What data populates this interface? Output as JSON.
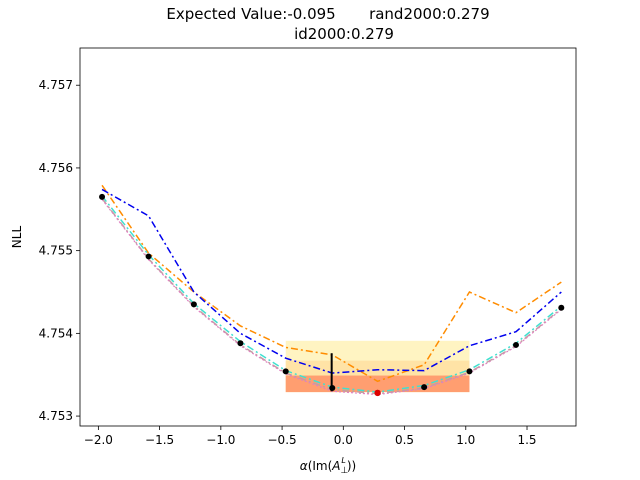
{
  "chart_data": {
    "type": "line",
    "title_line1": "Expected Value:-0.095       rand2000:0.279",
    "title_line2": "id2000:0.279",
    "xlabel_alpha": "α",
    "xlabel_open": "(Im(",
    "xlabel_A": "A",
    "xlabel_sub": "⊥",
    "xlabel_sup": "L",
    "xlabel_close": "))",
    "ylabel": "NLL",
    "xlim": [
      -2.15,
      1.9
    ],
    "ylim": [
      4.75288,
      4.75745
    ],
    "xticks": [
      -2.0,
      -1.5,
      -1.0,
      -0.5,
      0.0,
      0.5,
      1.0,
      1.5
    ],
    "xtick_labels": [
      "−2.0",
      "−1.5",
      "−1.0",
      "−0.5",
      "0.0",
      "0.5",
      "1.0",
      "1.5"
    ],
    "yticks": [
      4.753,
      4.754,
      4.755,
      4.756,
      4.757
    ],
    "ytick_labels": [
      "4.753",
      "4.754",
      "4.755",
      "4.756",
      "4.757"
    ],
    "grid": false,
    "x": [
      -1.97,
      -1.59,
      -1.22,
      -0.84,
      -0.47,
      -0.09,
      0.28,
      0.66,
      1.03,
      1.41,
      1.78
    ],
    "bands": [
      {
        "color": "#fff4c2",
        "y_low": 4.75329,
        "y_high": 4.75391,
        "x_range": [
          -0.47,
          1.03
        ]
      },
      {
        "color": "#ffe3a6",
        "y_low": 4.75329,
        "y_high": 4.75367,
        "x_range": [
          -0.47,
          1.03
        ]
      },
      {
        "color": "#ff9e70",
        "y_low": 4.75329,
        "y_high": 4.75349,
        "x_range": [
          -0.47,
          1.03
        ]
      }
    ],
    "series": [
      {
        "color": "#ff8c00",
        "dash": "7,3,2,3",
        "width": 1.5,
        "values": [
          4.75579,
          4.75497,
          4.7545,
          4.75409,
          4.75383,
          4.75374,
          4.75342,
          4.75362,
          4.7545,
          4.75425,
          4.75462
        ]
      },
      {
        "color": "#0000ee",
        "dash": "7,3,2,3",
        "width": 1.5,
        "values": [
          4.75574,
          4.75542,
          4.7545,
          4.754,
          4.7537,
          4.75352,
          4.75356,
          4.75355,
          4.75385,
          4.75402,
          4.7545
        ]
      },
      {
        "color": "#40e0d0",
        "dash": "7,3,2,3",
        "width": 1.5,
        "values": [
          4.75566,
          4.75495,
          4.75436,
          4.7539,
          4.75355,
          4.75335,
          4.75329,
          4.75337,
          4.75356,
          4.75388,
          4.75433
        ]
      },
      {
        "color": "#c0a0a0",
        "dash": "7,3,2,3",
        "width": 1.5,
        "values": [
          4.75563,
          4.7549,
          4.75433,
          4.75386,
          4.75352,
          4.75332,
          4.75327,
          4.75334,
          4.75353,
          4.75385,
          4.7543
        ]
      },
      {
        "color": "#e080c0",
        "dash": "2,2",
        "width": 1.2,
        "values": [
          4.75562,
          4.75489,
          4.75432,
          4.75385,
          4.75351,
          4.7533,
          4.75326,
          4.75333,
          4.75352,
          4.75384,
          4.75429
        ]
      }
    ],
    "points": {
      "color": "#000000",
      "values": [
        4.75565,
        4.75493,
        4.75435,
        4.75388,
        4.75354,
        4.75334,
        4.75328,
        4.75335,
        4.75354,
        4.75386,
        4.75431
      ]
    },
    "optimum": {
      "x": 0.28,
      "y": 4.75328,
      "color": "#dd0000"
    },
    "expected_value_marker": {
      "x": -0.095,
      "y_low": 4.7533,
      "y_high": 4.75376,
      "color": "#000000"
    }
  }
}
